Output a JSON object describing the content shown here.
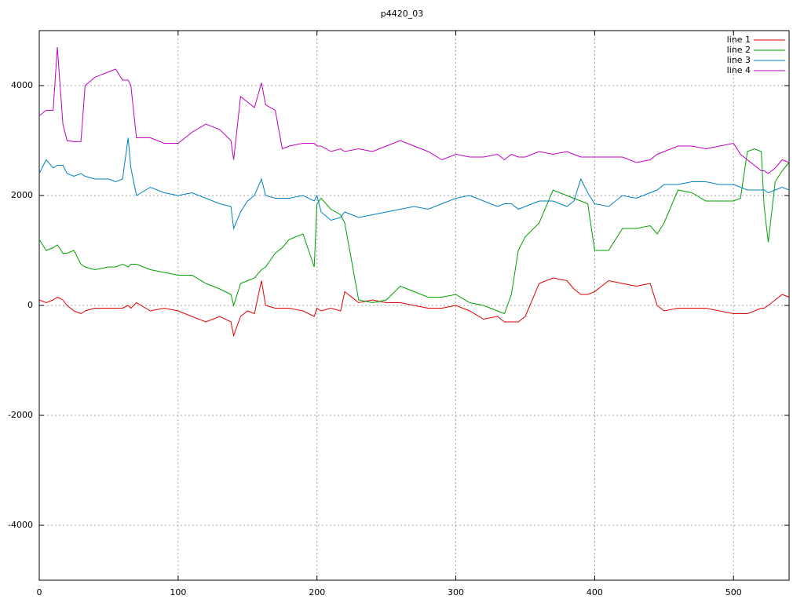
{
  "chart_data": {
    "type": "line",
    "title": "p4420_03",
    "x": [
      0,
      5,
      10,
      13,
      17,
      20,
      25,
      30,
      33,
      40,
      50,
      55,
      60,
      64,
      66,
      70,
      80,
      90,
      100,
      110,
      120,
      130,
      138,
      140,
      145,
      150,
      155,
      160,
      163,
      170,
      175,
      180,
      190,
      198,
      200,
      203,
      210,
      217,
      220,
      230,
      240,
      250,
      260,
      270,
      280,
      290,
      300,
      310,
      320,
      330,
      335,
      340,
      345,
      350,
      360,
      370,
      380,
      385,
      390,
      395,
      400,
      410,
      420,
      430,
      440,
      445,
      450,
      460,
      470,
      480,
      490,
      500,
      505,
      510,
      515,
      520,
      522,
      525,
      530,
      535,
      540
    ],
    "series": [
      {
        "name": "line 1",
        "color": "#e00000",
        "values": [
          100,
          50,
          100,
          150,
          100,
          0,
          -100,
          -150,
          -100,
          -50,
          -50,
          -50,
          -50,
          0,
          -50,
          50,
          -100,
          -50,
          -100,
          -200,
          -300,
          -200,
          -300,
          -550,
          -200,
          -100,
          -150,
          450,
          0,
          -50,
          -50,
          -50,
          -100,
          -200,
          -50,
          -100,
          -50,
          -100,
          250,
          50,
          100,
          50,
          50,
          0,
          -50,
          -50,
          0,
          -100,
          -250,
          -200,
          -300,
          -300,
          -300,
          -200,
          400,
          500,
          450,
          300,
          200,
          200,
          250,
          450,
          400,
          350,
          400,
          0,
          -100,
          -50,
          -50,
          -50,
          -100,
          -150,
          -150,
          -150,
          -100,
          -50,
          -50,
          0,
          100,
          200,
          150
        ]
      },
      {
        "name": "line 2",
        "color": "#00a000",
        "values": [
          1200,
          1000,
          1050,
          1100,
          950,
          950,
          1000,
          750,
          700,
          650,
          700,
          700,
          750,
          700,
          750,
          750,
          650,
          600,
          550,
          550,
          400,
          300,
          200,
          0,
          400,
          450,
          500,
          650,
          700,
          950,
          1050,
          1200,
          1300,
          700,
          1850,
          1950,
          1750,
          1650,
          1500,
          100,
          50,
          100,
          350,
          250,
          150,
          150,
          200,
          50,
          0,
          -100,
          -150,
          200,
          1000,
          1250,
          1500,
          2100,
          2000,
          1950,
          1900,
          1850,
          1000,
          1000,
          1400,
          1400,
          1450,
          1300,
          1500,
          2100,
          2050,
          1900,
          1900,
          1900,
          1950,
          2800,
          2850,
          2800,
          1800,
          1150,
          2250,
          2450,
          2600
        ]
      },
      {
        "name": "line 3",
        "color": "#0080c0",
        "values": [
          2400,
          2650,
          2500,
          2550,
          2550,
          2400,
          2350,
          2400,
          2350,
          2300,
          2300,
          2250,
          2300,
          3050,
          2500,
          2000,
          2150,
          2050,
          2000,
          2050,
          1950,
          1850,
          1800,
          1400,
          1700,
          1900,
          2000,
          2300,
          2000,
          1950,
          1950,
          1950,
          2000,
          1900,
          2000,
          1700,
          1550,
          1600,
          1700,
          1600,
          1650,
          1700,
          1750,
          1800,
          1750,
          1850,
          1950,
          2000,
          1900,
          1800,
          1850,
          1850,
          1750,
          1800,
          1900,
          1900,
          1800,
          1900,
          2300,
          2050,
          1850,
          1800,
          2000,
          1950,
          2050,
          2100,
          2200,
          2200,
          2250,
          2250,
          2200,
          2200,
          2150,
          2100,
          2100,
          2100,
          2100,
          2050,
          2100,
          2150,
          2100
        ]
      },
      {
        "name": "line 4",
        "color": "#c000c0",
        "values": [
          3450,
          3550,
          3550,
          4700,
          3300,
          3000,
          2980,
          2980,
          4000,
          4150,
          4250,
          4300,
          4100,
          4100,
          4000,
          3050,
          3050,
          2950,
          2950,
          3150,
          3300,
          3200,
          3000,
          2650,
          3800,
          3700,
          3600,
          4050,
          3650,
          3550,
          2850,
          2900,
          2950,
          2950,
          2900,
          2900,
          2800,
          2850,
          2800,
          2850,
          2800,
          2900,
          3000,
          2900,
          2800,
          2650,
          2750,
          2700,
          2700,
          2750,
          2650,
          2750,
          2700,
          2700,
          2800,
          2750,
          2800,
          2750,
          2700,
          2700,
          2700,
          2700,
          2700,
          2600,
          2650,
          2750,
          2800,
          2900,
          2900,
          2850,
          2900,
          2950,
          2750,
          2650,
          2550,
          2450,
          2450,
          2400,
          2500,
          2650,
          2600
        ]
      }
    ],
    "xlim": [
      0,
      540
    ],
    "xticks": [
      0,
      100,
      200,
      300,
      400,
      500
    ],
    "ylim": [
      -5000,
      5000
    ],
    "yticks": [
      -4000,
      -2000,
      0,
      2000,
      4000
    ],
    "grid": true,
    "legend": "top-right"
  }
}
